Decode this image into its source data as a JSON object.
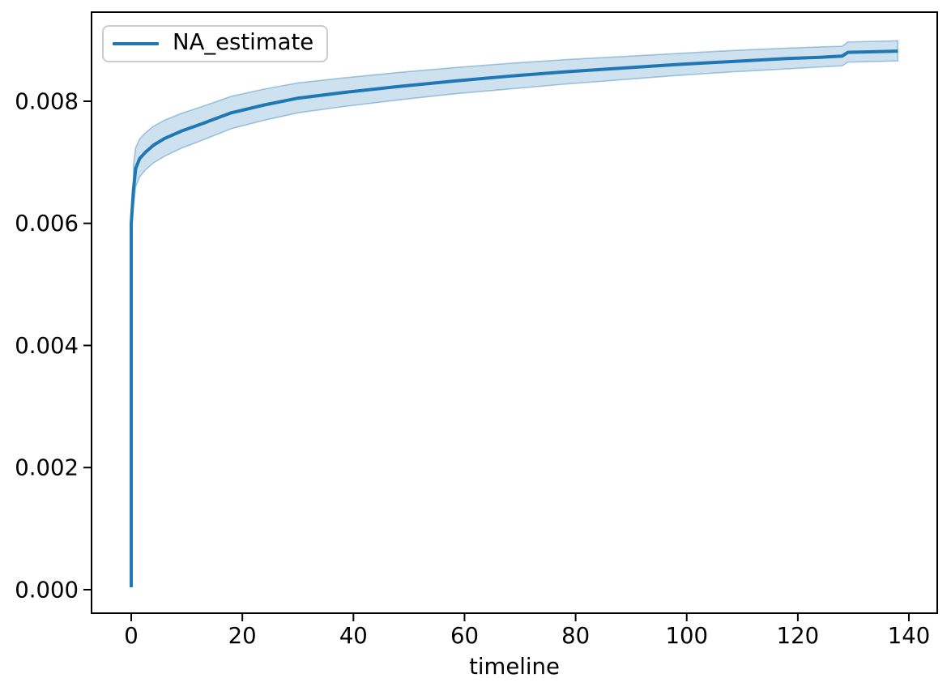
{
  "figure": {
    "background": "#ffffff",
    "spine_color": "#000000",
    "tick_color": "#000000"
  },
  "chart_data": {
    "type": "line",
    "title": "",
    "xlabel": "timeline",
    "ylabel": "",
    "grid": false,
    "xlim": [
      -7.15,
      145.1
    ],
    "ylim": [
      -0.000385,
      0.009459
    ],
    "xticks": [
      0,
      20,
      40,
      60,
      80,
      100,
      120,
      140
    ],
    "xtick_labels": [
      "0",
      "20",
      "40",
      "60",
      "80",
      "100",
      "120",
      "140"
    ],
    "yticks": [
      0.0,
      0.002,
      0.004,
      0.006,
      0.008
    ],
    "ytick_labels": [
      "0.000",
      "0.002",
      "0.004",
      "0.006",
      "0.008"
    ],
    "legend": {
      "position": "upper left",
      "entries": [
        {
          "label": "NA_estimate",
          "color": "#1f77b4"
        }
      ]
    },
    "series": [
      {
        "name": "NA_estimate",
        "color": "#1f77b4",
        "linewidth": 4,
        "x": [
          0,
          0,
          0.4,
          0.8,
          1.5,
          2.5,
          4,
          6,
          9,
          13,
          18,
          24,
          30,
          38,
          48,
          58,
          68,
          78,
          88,
          98,
          108,
          118,
          124,
          128,
          129,
          138
        ],
        "y": [
          4e-05,
          0.006,
          0.00655,
          0.0069,
          0.00706,
          0.00716,
          0.00728,
          0.00739,
          0.00751,
          0.00764,
          0.00781,
          0.00794,
          0.00805,
          0.00814,
          0.00824,
          0.00833,
          0.00841,
          0.00848,
          0.00854,
          0.0086,
          0.00865,
          0.0087,
          0.00872,
          0.00874,
          0.0088,
          0.00882
        ]
      }
    ],
    "confidence_band": {
      "fill_color": "rgba(31,119,180,0.22)",
      "edge_color": "rgba(31,119,180,0.38)",
      "x": [
        0.4,
        0.8,
        1.5,
        2.5,
        4,
        6,
        9,
        13,
        18,
        24,
        30,
        38,
        48,
        58,
        68,
        78,
        88,
        98,
        108,
        118,
        124,
        128,
        129,
        138
      ],
      "upper": [
        0.00695,
        0.00724,
        0.00738,
        0.00748,
        0.00759,
        0.00769,
        0.0078,
        0.00792,
        0.00808,
        0.0082,
        0.0083,
        0.00838,
        0.00847,
        0.00855,
        0.00862,
        0.00868,
        0.00873,
        0.00878,
        0.00883,
        0.00887,
        0.00889,
        0.0089,
        0.00897,
        0.00899
      ],
      "lower": [
        0.00628,
        0.0066,
        0.00676,
        0.00687,
        0.00699,
        0.0071,
        0.00723,
        0.00737,
        0.00755,
        0.00769,
        0.00781,
        0.00791,
        0.00802,
        0.00812,
        0.0082,
        0.00828,
        0.00835,
        0.00842,
        0.00848,
        0.00853,
        0.00856,
        0.00858,
        0.00864,
        0.00866
      ]
    }
  }
}
